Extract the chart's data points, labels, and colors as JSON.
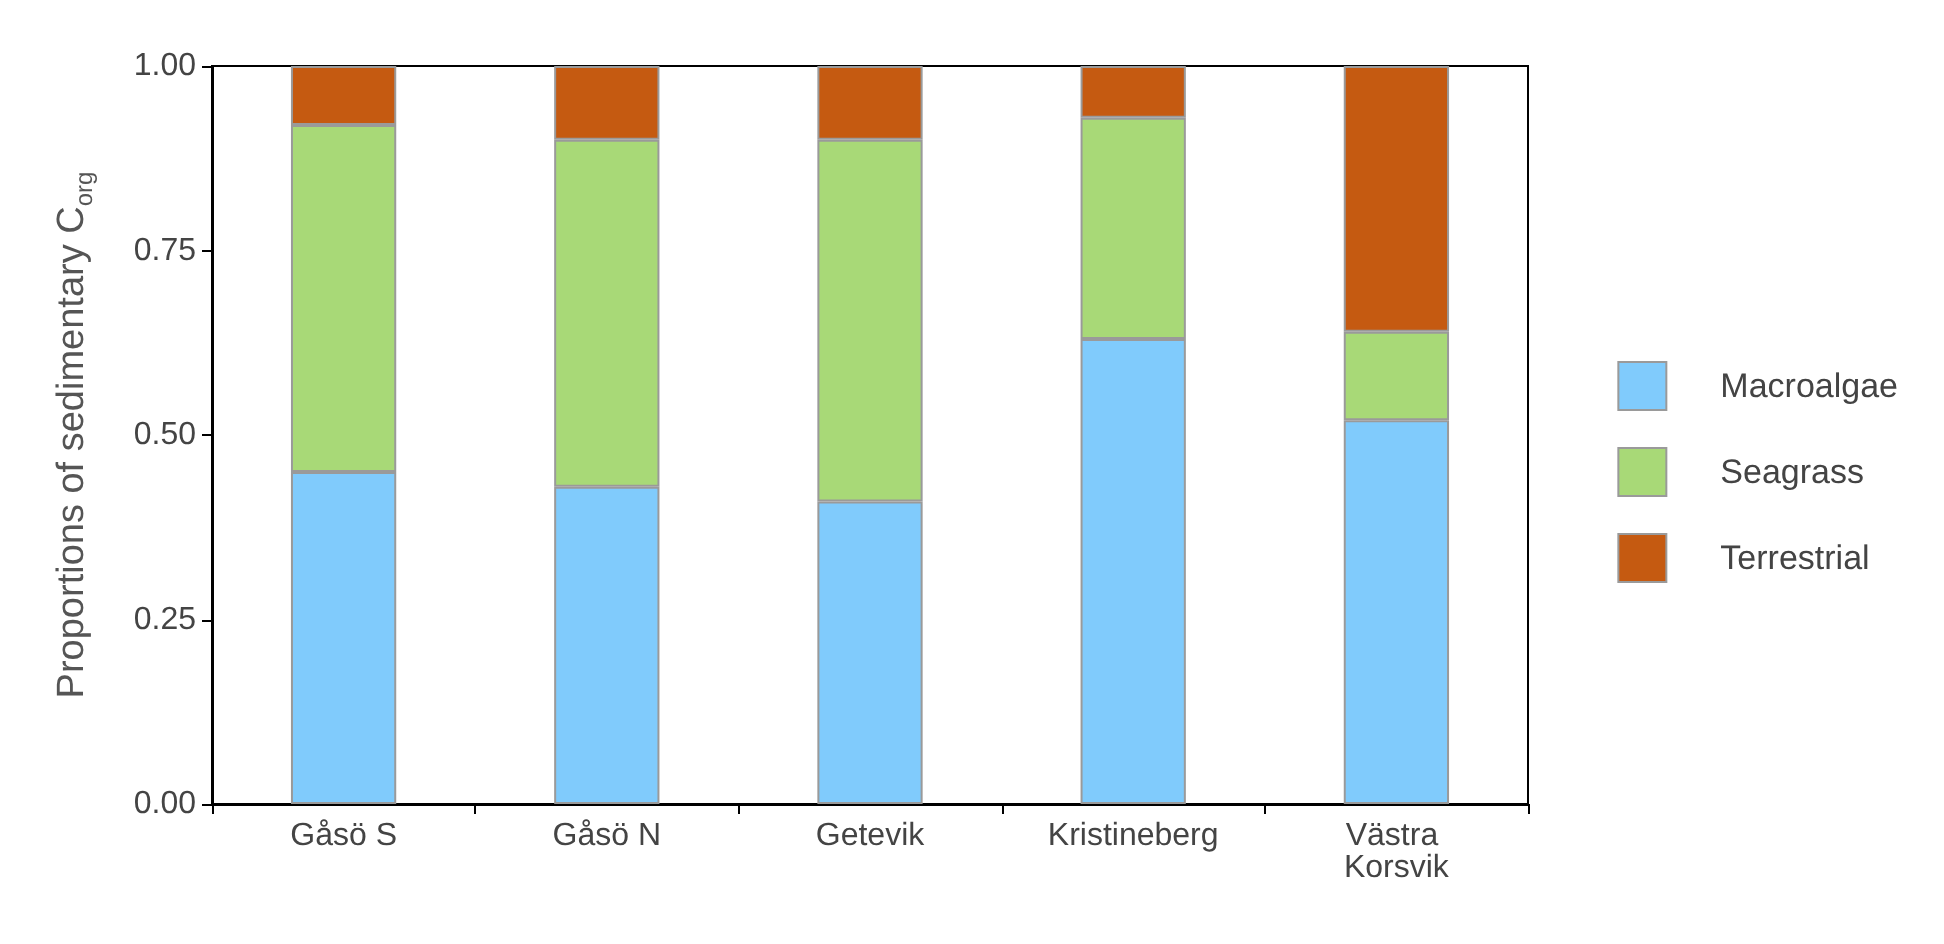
{
  "chart_data": {
    "type": "bar",
    "stacked": true,
    "ylabel": "Proportions of sedimentary C$_{org}$",
    "categories": [
      "Gåsö S",
      "Gåsö N",
      "Getevik",
      "Kristineberg",
      "Västra Korsvik"
    ],
    "series": [
      {
        "name": "Macroalgae",
        "color": "#80cbfc",
        "values": [
          0.45,
          0.43,
          0.41,
          0.63,
          0.52
        ]
      },
      {
        "name": "Seagrass",
        "color": "#a8d977",
        "values": [
          0.47,
          0.47,
          0.49,
          0.3,
          0.12
        ]
      },
      {
        "name": "Terrestrial",
        "color": "#c55a11",
        "values": [
          0.08,
          0.1,
          0.1,
          0.07,
          0.36
        ]
      }
    ],
    "ylim": [
      0,
      1
    ],
    "yticks": [
      {
        "value": 0,
        "label": "0.00"
      },
      {
        "value": 0.25,
        "label": "0.25"
      },
      {
        "value": 0.5,
        "label": "0.50"
      },
      {
        "value": 0.75,
        "label": "0.75"
      },
      {
        "value": 1,
        "label": "1.00"
      }
    ],
    "grid": false,
    "legend": "right"
  }
}
